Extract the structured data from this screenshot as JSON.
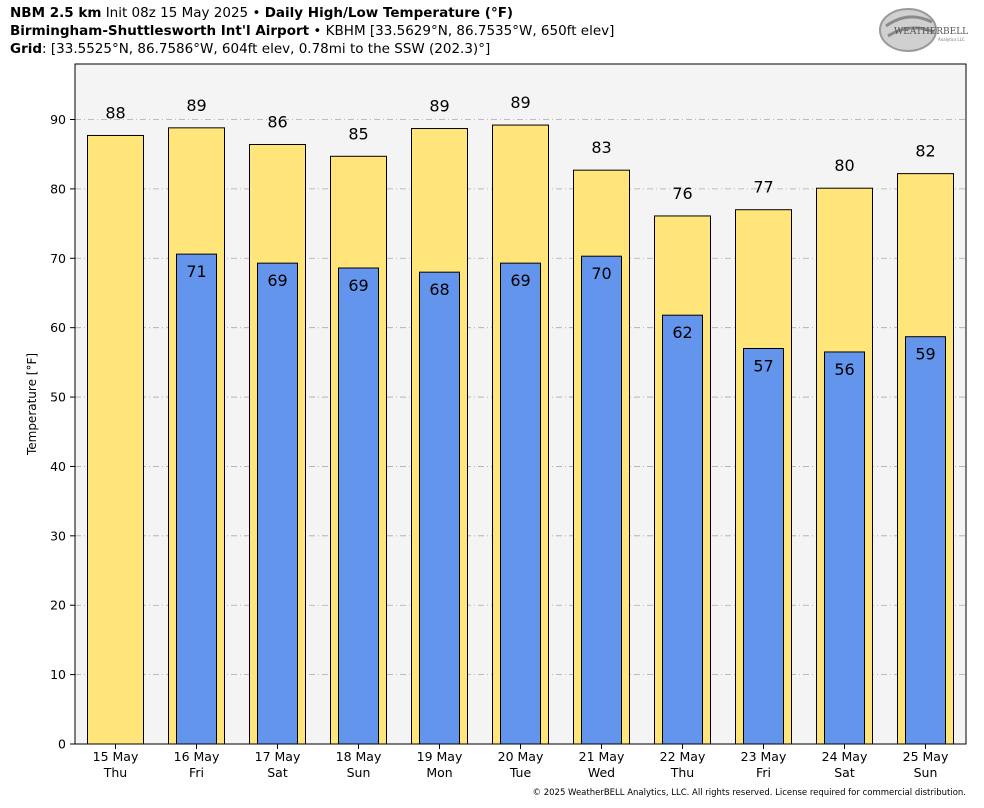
{
  "header": {
    "line1": {
      "model": "NBM 2.5 km",
      "init": "Init 08z 15 May 2025",
      "sep": "•",
      "product": "Daily High/Low Temperature (°F)"
    },
    "line2": {
      "station": "Birmingham-Shuttlesworth Int'l Airport",
      "sep": "•",
      "details": "KBHM [33.5629°N, 86.7535°W, 650ft elev]"
    },
    "line3": {
      "label": "Grid",
      "details": ": [33.5525°N, 86.7586°W, 604ft elev, 0.78mi to the SSW (202.3)°]"
    }
  },
  "logo": {
    "text": "WEATHERBELL",
    "sub": "Analytics LLC"
  },
  "copyright": "© 2025 WeatherBELL Analytics, LLC. All rights reserved. License required for commercial distribution.",
  "colors": {
    "high": "#FFE57A",
    "low": "#6495ED",
    "plot_bg": "#F4F4F4",
    "grid": "#AAAAAA"
  },
  "chart_data": {
    "type": "bar",
    "title": "Daily High/Low Temperature (°F)",
    "xlabel": "",
    "ylabel": "Temperature [°F]",
    "ylim": [
      0,
      98
    ],
    "yticks": [
      0,
      10,
      20,
      30,
      40,
      50,
      60,
      70,
      80,
      90
    ],
    "grid": true,
    "categories": [
      "15 May",
      "16 May",
      "17 May",
      "18 May",
      "19 May",
      "20 May",
      "21 May",
      "22 May",
      "23 May",
      "24 May",
      "25 May"
    ],
    "weekdays": [
      "Thu",
      "Fri",
      "Sat",
      "Sun",
      "Mon",
      "Tue",
      "Wed",
      "Thu",
      "Fri",
      "Sat",
      "Sun"
    ],
    "series": [
      {
        "values": [
          87.7,
          88.8,
          86.4,
          84.7,
          88.7,
          89.2,
          82.7,
          76.1,
          77.0,
          80.1,
          82.2
        ],
        "labels": [
          "88",
          "89",
          "86",
          "85",
          "89",
          "89",
          "83",
          "76",
          "77",
          "80",
          "82"
        ]
      },
      {
        "values": [
          null,
          70.6,
          69.3,
          68.6,
          68.0,
          69.3,
          70.3,
          61.8,
          57.0,
          56.5,
          58.7
        ],
        "labels": [
          "",
          "71",
          "69",
          "69",
          "68",
          "69",
          "70",
          "62",
          "57",
          "56",
          "59"
        ]
      }
    ]
  }
}
